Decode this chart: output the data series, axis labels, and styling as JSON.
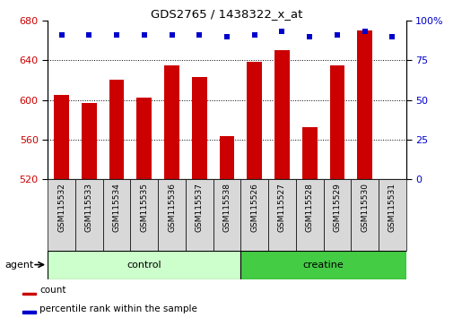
{
  "title": "GDS2765 / 1438322_x_at",
  "samples": [
    "GSM115532",
    "GSM115533",
    "GSM115534",
    "GSM115535",
    "GSM115536",
    "GSM115537",
    "GSM115538",
    "GSM115526",
    "GSM115527",
    "GSM115528",
    "GSM115529",
    "GSM115530",
    "GSM115531"
  ],
  "counts": [
    605,
    597,
    620,
    602,
    635,
    623,
    563,
    638,
    650,
    572,
    635,
    670,
    520
  ],
  "percentiles": [
    91,
    91,
    91,
    91,
    91,
    91,
    90,
    91,
    93,
    90,
    91,
    93,
    90
  ],
  "bar_color": "#cc0000",
  "dot_color": "#0000cc",
  "ymin": 520,
  "ymax": 680,
  "yticks": [
    520,
    560,
    600,
    640,
    680
  ],
  "right_yticks": [
    0,
    25,
    50,
    75,
    100
  ],
  "groups": [
    {
      "label": "control",
      "start": 0,
      "end": 7,
      "color": "#ccffcc"
    },
    {
      "label": "creatine",
      "start": 7,
      "end": 13,
      "color": "#44cc44"
    }
  ],
  "agent_label": "agent",
  "legend_count_label": "count",
  "legend_pct_label": "percentile rank within the sample",
  "left_tick_color": "#cc0000",
  "right_tick_color": "#0000cc",
  "dotted_gridlines": [
    560,
    600,
    640
  ],
  "xlabel_bg": "#d8d8d8"
}
